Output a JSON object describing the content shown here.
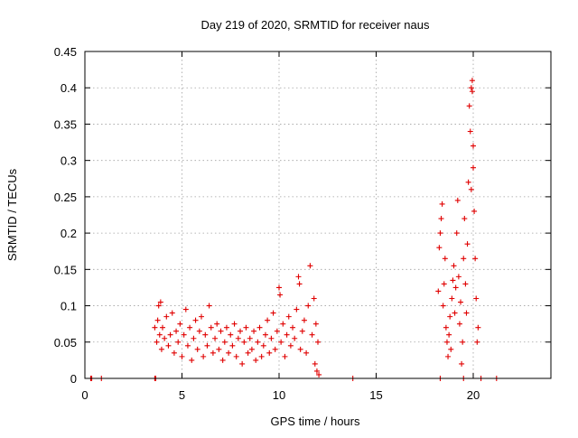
{
  "chart_data": {
    "type": "scatter",
    "title": "Day 219 of 2020, SRMTID for receiver naus",
    "xlabel": "GPS time / hours",
    "ylabel": "SRMTID / TECUs",
    "xlim": [
      0,
      24
    ],
    "ylim": [
      0,
      0.45
    ],
    "xticks": [
      "0",
      "5",
      "10",
      "15",
      "20"
    ],
    "xtick_values": [
      0,
      5,
      10,
      15,
      20
    ],
    "yticks": [
      "0",
      "0.05",
      "0.1",
      "0.15",
      "0.2",
      "0.25",
      "0.3",
      "0.35",
      "0.4",
      "0.45"
    ],
    "ytick_values": [
      0,
      0.05,
      0.1,
      0.15,
      0.2,
      0.25,
      0.3,
      0.35,
      0.4,
      0.45
    ],
    "grid": true,
    "marker": "+",
    "color": "#e00000",
    "series": [
      {
        "name": "SRMTID",
        "points": [
          [
            0.3,
            0.0
          ],
          [
            0.35,
            0.0
          ],
          [
            0.85,
            0.0
          ],
          [
            3.6,
            0.0
          ],
          [
            3.65,
            0.0
          ],
          [
            3.6,
            0.07
          ],
          [
            3.7,
            0.05
          ],
          [
            3.75,
            0.08
          ],
          [
            3.8,
            0.1
          ],
          [
            3.85,
            0.06
          ],
          [
            3.9,
            0.105
          ],
          [
            3.95,
            0.04
          ],
          [
            4.0,
            0.07
          ],
          [
            4.1,
            0.055
          ],
          [
            4.2,
            0.085
          ],
          [
            4.3,
            0.045
          ],
          [
            4.4,
            0.06
          ],
          [
            4.5,
            0.09
          ],
          [
            4.6,
            0.035
          ],
          [
            4.7,
            0.065
          ],
          [
            4.8,
            0.05
          ],
          [
            4.9,
            0.075
          ],
          [
            5.0,
            0.03
          ],
          [
            5.1,
            0.06
          ],
          [
            5.2,
            0.095
          ],
          [
            5.3,
            0.045
          ],
          [
            5.4,
            0.07
          ],
          [
            5.5,
            0.025
          ],
          [
            5.6,
            0.055
          ],
          [
            5.7,
            0.08
          ],
          [
            5.8,
            0.04
          ],
          [
            5.9,
            0.065
          ],
          [
            6.0,
            0.085
          ],
          [
            6.1,
            0.03
          ],
          [
            6.2,
            0.06
          ],
          [
            6.3,
            0.045
          ],
          [
            6.4,
            0.1
          ],
          [
            6.5,
            0.07
          ],
          [
            6.6,
            0.035
          ],
          [
            6.7,
            0.055
          ],
          [
            6.8,
            0.075
          ],
          [
            6.9,
            0.04
          ],
          [
            7.0,
            0.065
          ],
          [
            7.1,
            0.025
          ],
          [
            7.2,
            0.05
          ],
          [
            7.3,
            0.07
          ],
          [
            7.4,
            0.035
          ],
          [
            7.5,
            0.06
          ],
          [
            7.6,
            0.045
          ],
          [
            7.7,
            0.075
          ],
          [
            7.8,
            0.03
          ],
          [
            7.9,
            0.055
          ],
          [
            8.0,
            0.065
          ],
          [
            8.1,
            0.02
          ],
          [
            8.2,
            0.05
          ],
          [
            8.3,
            0.07
          ],
          [
            8.4,
            0.035
          ],
          [
            8.5,
            0.055
          ],
          [
            8.6,
            0.04
          ],
          [
            8.7,
            0.065
          ],
          [
            8.8,
            0.025
          ],
          [
            8.9,
            0.05
          ],
          [
            9.0,
            0.07
          ],
          [
            9.1,
            0.03
          ],
          [
            9.2,
            0.045
          ],
          [
            9.3,
            0.06
          ],
          [
            9.4,
            0.08
          ],
          [
            9.5,
            0.035
          ],
          [
            9.6,
            0.055
          ],
          [
            9.7,
            0.09
          ],
          [
            9.8,
            0.04
          ],
          [
            9.9,
            0.065
          ],
          [
            10.0,
            0.125
          ],
          [
            10.05,
            0.115
          ],
          [
            10.1,
            0.05
          ],
          [
            10.2,
            0.075
          ],
          [
            10.3,
            0.03
          ],
          [
            10.4,
            0.06
          ],
          [
            10.5,
            0.085
          ],
          [
            10.6,
            0.045
          ],
          [
            10.7,
            0.07
          ],
          [
            10.8,
            0.055
          ],
          [
            10.9,
            0.095
          ],
          [
            11.0,
            0.14
          ],
          [
            11.05,
            0.13
          ],
          [
            11.1,
            0.04
          ],
          [
            11.2,
            0.065
          ],
          [
            11.3,
            0.08
          ],
          [
            11.4,
            0.035
          ],
          [
            11.5,
            0.1
          ],
          [
            11.6,
            0.155
          ],
          [
            11.7,
            0.06
          ],
          [
            11.8,
            0.11
          ],
          [
            11.85,
            0.02
          ],
          [
            11.9,
            0.075
          ],
          [
            11.95,
            0.01
          ],
          [
            12.0,
            0.05
          ],
          [
            12.05,
            0.005
          ],
          [
            13.8,
            0.0
          ],
          [
            18.3,
            0.0
          ],
          [
            19.5,
            0.0
          ],
          [
            20.4,
            0.0
          ],
          [
            21.2,
            0.0
          ],
          [
            18.2,
            0.12
          ],
          [
            18.25,
            0.18
          ],
          [
            18.3,
            0.2
          ],
          [
            18.35,
            0.22
          ],
          [
            18.4,
            0.24
          ],
          [
            18.45,
            0.1
          ],
          [
            18.5,
            0.13
          ],
          [
            18.55,
            0.165
          ],
          [
            18.6,
            0.07
          ],
          [
            18.65,
            0.05
          ],
          [
            18.7,
            0.03
          ],
          [
            18.75,
            0.06
          ],
          [
            18.8,
            0.085
          ],
          [
            18.85,
            0.04
          ],
          [
            18.9,
            0.11
          ],
          [
            18.95,
            0.135
          ],
          [
            19.0,
            0.155
          ],
          [
            19.05,
            0.09
          ],
          [
            19.1,
            0.125
          ],
          [
            19.15,
            0.2
          ],
          [
            19.2,
            0.245
          ],
          [
            19.25,
            0.14
          ],
          [
            19.3,
            0.075
          ],
          [
            19.35,
            0.105
          ],
          [
            19.4,
            0.02
          ],
          [
            19.45,
            0.05
          ],
          [
            19.5,
            0.165
          ],
          [
            19.55,
            0.22
          ],
          [
            19.6,
            0.13
          ],
          [
            19.65,
            0.09
          ],
          [
            19.7,
            0.185
          ],
          [
            19.75,
            0.27
          ],
          [
            19.8,
            0.375
          ],
          [
            19.85,
            0.34
          ],
          [
            19.9,
            0.26
          ],
          [
            19.95,
            0.41
          ],
          [
            20.0,
            0.32
          ],
          [
            20.05,
            0.23
          ],
          [
            20.1,
            0.165
          ],
          [
            20.15,
            0.11
          ],
          [
            20.2,
            0.05
          ],
          [
            20.25,
            0.07
          ],
          [
            19.9,
            0.4
          ],
          [
            19.95,
            0.395
          ],
          [
            20.0,
            0.29
          ]
        ]
      }
    ]
  }
}
